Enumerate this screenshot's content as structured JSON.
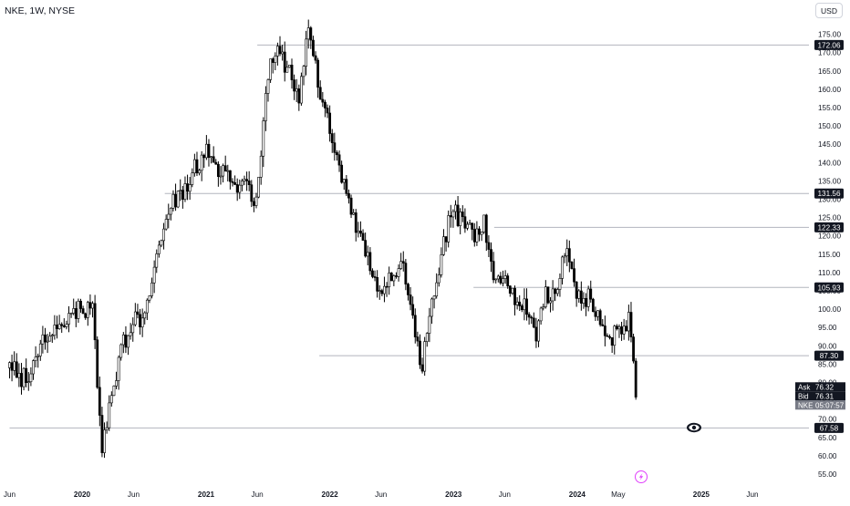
{
  "header": {
    "symbol_title": "NKE, 1W, NYSE",
    "currency": "USD"
  },
  "colors": {
    "candle": "#000000",
    "level_line": "#b2b5be",
    "text": "#131722",
    "label_bg": "#131722",
    "label_text": "#ffffff",
    "symbol_label_bg": "#787b86",
    "badge_accent": "#e040fb"
  },
  "chart_data": {
    "type": "ohlc",
    "interval": "1W",
    "symbol": "NKE",
    "exchange": "NYSE",
    "currency": "USD",
    "ylim": [
      52.5,
      179.0
    ],
    "x_range": [
      "2019-06",
      "2025-07"
    ],
    "y_ticks": [
      55,
      60,
      65,
      70,
      75,
      80,
      85,
      90,
      95,
      100,
      105,
      110,
      115,
      120,
      125,
      130,
      135,
      140,
      145,
      150,
      155,
      160,
      165,
      170,
      175
    ],
    "x_ticks": [
      {
        "label": "Jun",
        "date": "2019-06"
      },
      {
        "label": "2020",
        "date": "2020-01"
      },
      {
        "label": "Jun",
        "date": "2020-06"
      },
      {
        "label": "2021",
        "date": "2021-01"
      },
      {
        "label": "Jun",
        "date": "2021-06"
      },
      {
        "label": "2022",
        "date": "2022-01"
      },
      {
        "label": "Jun",
        "date": "2022-06"
      },
      {
        "label": "2023",
        "date": "2023-01"
      },
      {
        "label": "Jun",
        "date": "2023-06"
      },
      {
        "label": "2024",
        "date": "2024-01"
      },
      {
        "label": "May",
        "date": "2024-05"
      },
      {
        "label": "2025",
        "date": "2025-01"
      },
      {
        "label": "Jun",
        "date": "2025-06"
      }
    ],
    "price_path": [
      {
        "date": "2019-06",
        "price": 84
      },
      {
        "date": "2019-08",
        "price": 80
      },
      {
        "date": "2019-09",
        "price": 91
      },
      {
        "date": "2019-10",
        "price": 94
      },
      {
        "date": "2019-11",
        "price": 95
      },
      {
        "date": "2020-01",
        "price": 101
      },
      {
        "date": "2020-02",
        "price": 100
      },
      {
        "date": "2020-03",
        "price": 62
      },
      {
        "date": "2020-05",
        "price": 91
      },
      {
        "date": "2020-06",
        "price": 97
      },
      {
        "date": "2020-07",
        "price": 98
      },
      {
        "date": "2020-08",
        "price": 111
      },
      {
        "date": "2020-09",
        "price": 126
      },
      {
        "date": "2020-11",
        "price": 133
      },
      {
        "date": "2021-01",
        "price": 144
      },
      {
        "date": "2021-03",
        "price": 135
      },
      {
        "date": "2021-05",
        "price": 133
      },
      {
        "date": "2021-06",
        "price": 130
      },
      {
        "date": "2021-07",
        "price": 164
      },
      {
        "date": "2021-08",
        "price": 172
      },
      {
        "date": "2021-10",
        "price": 158
      },
      {
        "date": "2021-11",
        "price": 176
      },
      {
        "date": "2021-12",
        "price": 160
      },
      {
        "date": "2022-01",
        "price": 148
      },
      {
        "date": "2022-03",
        "price": 127
      },
      {
        "date": "2022-05",
        "price": 112
      },
      {
        "date": "2022-06",
        "price": 104
      },
      {
        "date": "2022-08",
        "price": 112
      },
      {
        "date": "2022-09",
        "price": 99
      },
      {
        "date": "2022-10",
        "price": 84
      },
      {
        "date": "2022-11",
        "price": 103
      },
      {
        "date": "2022-12",
        "price": 118
      },
      {
        "date": "2023-01",
        "price": 127
      },
      {
        "date": "2023-03",
        "price": 121
      },
      {
        "date": "2023-04",
        "price": 124
      },
      {
        "date": "2023-05",
        "price": 108
      },
      {
        "date": "2023-06",
        "price": 108
      },
      {
        "date": "2023-07",
        "price": 104
      },
      {
        "date": "2023-08",
        "price": 100
      },
      {
        "date": "2023-09",
        "price": 93
      },
      {
        "date": "2023-10",
        "price": 104
      },
      {
        "date": "2023-11",
        "price": 107
      },
      {
        "date": "2023-12",
        "price": 120
      },
      {
        "date": "2024-01",
        "price": 103
      },
      {
        "date": "2024-02",
        "price": 103
      },
      {
        "date": "2024-03",
        "price": 98
      },
      {
        "date": "2024-04",
        "price": 92
      },
      {
        "date": "2024-05",
        "price": 93
      },
      {
        "date": "2024-06",
        "price": 97
      },
      {
        "date": "2024-06-28",
        "price": 76
      }
    ],
    "horizontal_levels": [
      {
        "price": "172.06",
        "start": "2021-06"
      },
      {
        "price": "131.56",
        "start": "2020-09"
      },
      {
        "price": "122.33",
        "start": "2023-05"
      },
      {
        "price": "105.93",
        "start": "2023-03"
      },
      {
        "price": "87.30",
        "start": "2021-12"
      },
      {
        "price": "67.58",
        "start": "2019-06"
      }
    ],
    "quote": {
      "ask_label": "Ask",
      "ask": "76.32",
      "bid_label": "Bid",
      "bid": "76.31",
      "symbol_tag": "NKE",
      "countdown": "05:07:57"
    }
  }
}
